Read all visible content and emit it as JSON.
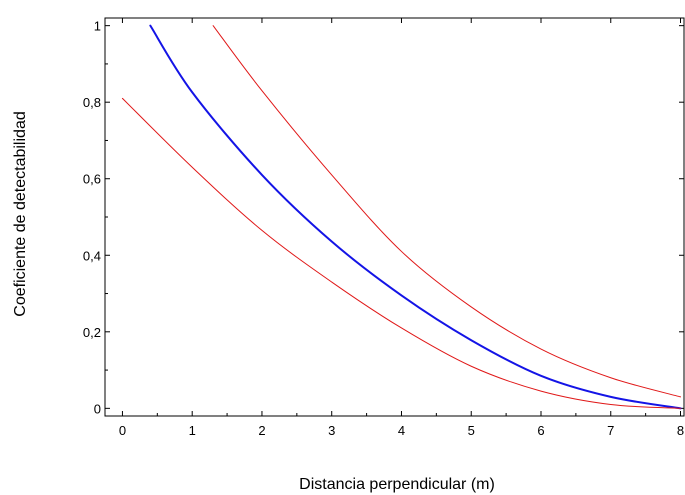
{
  "chart_data": {
    "type": "line",
    "title": "",
    "xlabel": "Distancia perpendicular (m)",
    "ylabel": "Coeficiente de detectabilidad",
    "xlim": [
      -0.25,
      8.05
    ],
    "ylim": [
      -0.02,
      1.02
    ],
    "x_ticks": [
      0,
      1,
      2,
      3,
      4,
      5,
      6,
      7,
      8
    ],
    "x_tick_labels": [
      "0",
      "1",
      "2",
      "3",
      "4",
      "5",
      "6",
      "7",
      "8"
    ],
    "y_ticks": [
      0,
      0.2,
      0.4,
      0.6,
      0.8,
      1
    ],
    "y_tick_labels": [
      "0",
      "0,2",
      "0,4",
      "0,6",
      "0,8",
      "1"
    ],
    "grid": false,
    "legend": "none",
    "series": [
      {
        "color": "#1414e6",
        "style": "thick",
        "x": [
          0.4,
          1,
          2,
          3,
          4,
          5,
          6,
          7,
          8
        ],
        "y": [
          1.0,
          0.826,
          0.61,
          0.436,
          0.295,
          0.178,
          0.085,
          0.03,
          0.0
        ]
      },
      {
        "color": "#e01818",
        "style": "thin",
        "x": [
          1.3,
          2,
          3,
          4,
          5,
          6,
          7,
          8
        ],
        "y": [
          1.0,
          0.83,
          0.61,
          0.41,
          0.265,
          0.155,
          0.08,
          0.03
        ]
      },
      {
        "color": "#e01818",
        "style": "thin",
        "x": [
          0,
          1,
          2,
          3,
          4,
          5,
          6,
          7,
          8
        ],
        "y": [
          0.81,
          0.63,
          0.465,
          0.33,
          0.21,
          0.11,
          0.045,
          0.01,
          0.0
        ]
      }
    ]
  }
}
